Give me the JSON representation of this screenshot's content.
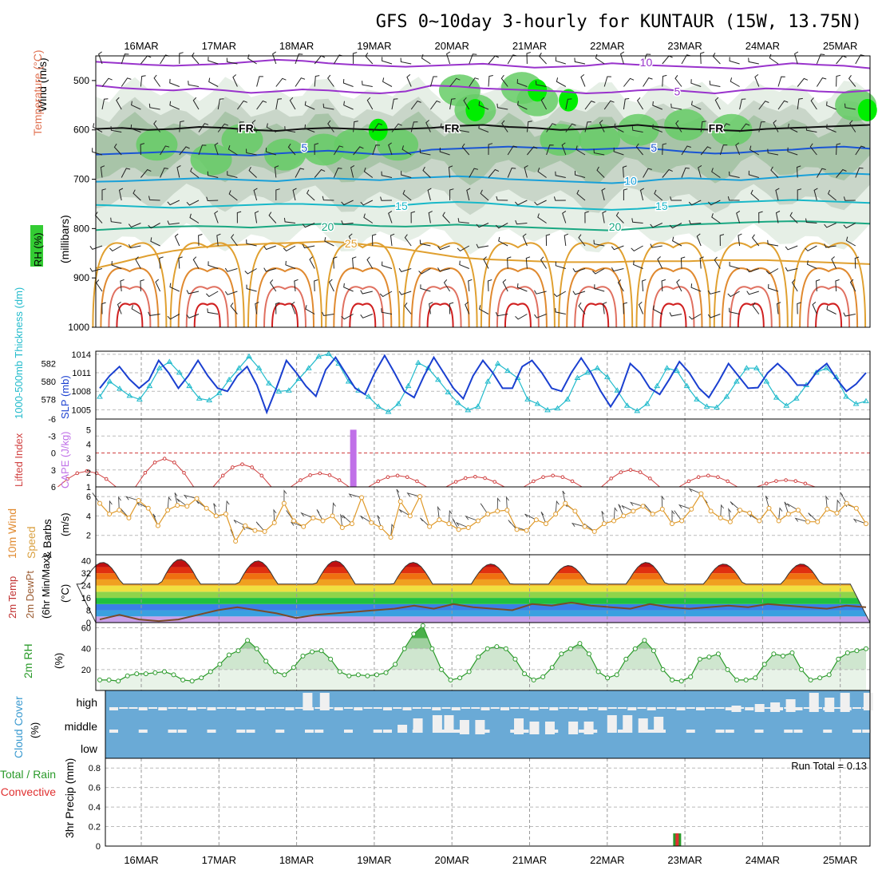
{
  "title": "GFS 0~10day 3-hourly for KUNTAUR (15W, 13.75N)",
  "dates": [
    "16MAR",
    "17MAR",
    "18MAR",
    "19MAR",
    "20MAR",
    "21MAR",
    "22MAR",
    "23MAR",
    "24MAR",
    "25MAR"
  ],
  "colors": {
    "rh_green": "#33cc33",
    "temp_purple": "#9933cc",
    "temp_blue": "#1a55d4",
    "temp_cyan": "#19b8c8",
    "temp_teal": "#1aa882",
    "temp_orange": "#e0a030",
    "temp_red": "#d02020",
    "cloud_blue": "#6aaad6",
    "thick_cyan": "#22bbcc",
    "slp_blue": "#1a3fd0",
    "cape_purple": "#c070e8",
    "li_red": "#d04040",
    "wind_orange": "#e09a2a",
    "rh2m_green": "#2a9a2a"
  },
  "chart_data": [
    {
      "panel": "upper-air",
      "type": "heatmap",
      "ylabel_left": [
        "RH (%)",
        "Temperature (°C)",
        "Wind (m/s)"
      ],
      "ylabel_axis": "(millibars)",
      "y_ticks": [
        "500",
        "600",
        "700",
        "800",
        "900",
        "1000"
      ],
      "ylim": [
        1000,
        450
      ],
      "isotherms": [
        {
          "value": "10",
          "label_positions_day": [
            7.2
          ]
        },
        {
          "value": "5",
          "label_positions_day": [
            7.4
          ]
        },
        {
          "value": "FR",
          "label_positions_day": [
            1.35,
            4.0,
            7.7
          ]
        },
        {
          "value": "5",
          "label_positions_day": [
            2.3,
            6.6
          ]
        },
        {
          "value": "10",
          "label_positions_day": [
            6.3
          ]
        },
        {
          "value": "15",
          "label_positions_day": [
            3.4,
            7.9
          ]
        },
        {
          "value": "20",
          "label_positions_day": [
            2.8,
            6.7
          ]
        },
        {
          "value": "25",
          "label_positions_day": [
            3.0
          ]
        }
      ],
      "isotherm_levels_mb": [
        {
          "value": 10,
          "color": "#9933cc",
          "mb": [
            462,
            465,
            468,
            470,
            468,
            466,
            462,
            458,
            460,
            465,
            468,
            470,
            472,
            470,
            468,
            466,
            470,
            474,
            472,
            470,
            465,
            468,
            470,
            472,
            474,
            476,
            470,
            465,
            468,
            470,
            475
          ]
        },
        {
          "value": 5,
          "color": "#9933cc",
          "mb": [
            510,
            515,
            518,
            520,
            516,
            520,
            525,
            522,
            518,
            520,
            524,
            526,
            522,
            510,
            512,
            516,
            518,
            520,
            522,
            526,
            524,
            520,
            518,
            522,
            526,
            520,
            516,
            518,
            522,
            524,
            520
          ]
        },
        {
          "value": 0,
          "color": "#111111",
          "mb": [
            598,
            596,
            600,
            598,
            594,
            596,
            600,
            602,
            598,
            596,
            598,
            600,
            598,
            596,
            592,
            590,
            594,
            596,
            600,
            598,
            594,
            590,
            595,
            598,
            600,
            602,
            598,
            596,
            594,
            592,
            590
          ]
        },
        {
          "value": -5,
          "color": "#1a55d4",
          "mb": [
            650,
            648,
            646,
            644,
            648,
            650,
            652,
            648,
            645,
            642,
            646,
            650,
            648,
            640,
            638,
            636,
            634,
            636,
            638,
            640,
            638,
            636,
            640,
            645,
            648,
            646,
            642,
            640,
            636,
            634,
            638
          ]
        },
        {
          "value": -10,
          "color": "#19a0d8",
          "mb": [
            705,
            704,
            702,
            700,
            698,
            700,
            702,
            704,
            700,
            698,
            700,
            702,
            698,
            696,
            694,
            696,
            700,
            702,
            704,
            706,
            708,
            705,
            700,
            698,
            700,
            702,
            698,
            694,
            690,
            688,
            690
          ]
        },
        {
          "value": -15,
          "color": "#19b8c8",
          "mb": [
            752,
            754,
            756,
            758,
            756,
            754,
            752,
            750,
            750,
            752,
            754,
            756,
            752,
            748,
            746,
            748,
            752,
            756,
            758,
            760,
            762,
            760,
            756,
            752,
            748,
            746,
            744,
            742,
            744,
            746,
            748
          ]
        },
        {
          "value": -20,
          "color": "#1aa882",
          "mb": [
            803,
            800,
            798,
            796,
            795,
            796,
            798,
            795,
            792,
            790,
            792,
            795,
            796,
            794,
            792,
            794,
            796,
            798,
            800,
            802,
            804,
            800,
            796,
            792,
            790,
            788,
            786,
            785,
            786,
            788,
            790
          ]
        },
        {
          "value": -25,
          "color": "#e0a030",
          "mb": [
            880,
            868,
            855,
            845,
            838,
            834,
            832,
            830,
            828,
            826,
            830,
            836,
            842,
            850,
            858,
            862,
            864,
            866,
            868,
            868,
            868,
            866,
            866,
            866,
            864,
            864,
            864,
            866,
            868,
            870,
            872
          ]
        }
      ],
      "moist_bands_mb": [
        [
          590,
          620
        ],
        [
          600,
          630
        ],
        [
          560,
          650
        ],
        [
          560,
          680
        ]
      ]
    },
    {
      "panel": "thickness-slp",
      "type": "line",
      "ylabel_left": "1000-500mb Thickness (dm)",
      "ylabel_right": "SLP (mb)",
      "left_ticks": [
        "582",
        "580",
        "578"
      ],
      "right_ticks": [
        "1014",
        "1011",
        "1008",
        "1005"
      ],
      "series": [
        {
          "name": "SLP (mb)",
          "values": [
            1008.5,
            1010.5,
            1012,
            1010,
            1008.5,
            1009.8,
            1013,
            1011,
            1008.5,
            1010.5,
            1013,
            1010.5,
            1008.5,
            1008,
            1010.5,
            1012,
            1009,
            1004.6,
            1008.6,
            1013,
            1011,
            1008.8,
            1007.2,
            1011.5,
            1013.5,
            1011,
            1008.5,
            1007.5,
            1011,
            1013.8,
            1011,
            1008,
            1007,
            1010.5,
            1013.5,
            1011,
            1008.5,
            1006.8,
            1010.5,
            1013,
            1011,
            1008.5,
            1008.5,
            1012,
            1013,
            1011,
            1008.5,
            1008,
            1011,
            1013.4,
            1011,
            1008,
            1005.5,
            1008,
            1012.5,
            1011,
            1008.5,
            1007.5,
            1010,
            1012.8,
            1011,
            1008.5,
            1007,
            1009.6,
            1012.5,
            1010.5,
            1008.5,
            1008.6,
            1011,
            1012.5,
            1011,
            1009,
            1009,
            1011.2,
            1012.5,
            1010,
            1008,
            1009.2,
            1011
          ]
        },
        {
          "name": "Thickness (dm)",
          "values": [
            578.3,
            580.0,
            579.2,
            578.4,
            578.0,
            579.5,
            581.5,
            582.2,
            581.0,
            579.5,
            578.1,
            577.9,
            578.7,
            580.2,
            581.5,
            582.8,
            581.5,
            579.8,
            578.9,
            579.0,
            580.3,
            581.5,
            582.8,
            583.1,
            582.0,
            580.0,
            579.0,
            578.3,
            577.2,
            576.6,
            577.5,
            579.5,
            582.1,
            581.5,
            580.2,
            578.8,
            577.6,
            576.8,
            577.2,
            580.0,
            582.0,
            581.2,
            580.4,
            578.0,
            577.5,
            576.8,
            577.0,
            578.0,
            580.4,
            581.0,
            581.5,
            580.5,
            579.0,
            577.3,
            576.7,
            577.5,
            579.5,
            581.5,
            581.2,
            579.5,
            578.0,
            577.2,
            577.1,
            578.3,
            580.0,
            581.5,
            581.5,
            580.0,
            578.2,
            577.3,
            578.1,
            579.6,
            581.0,
            581.5,
            580.5,
            578.3,
            577.5,
            577.8
          ]
        }
      ]
    },
    {
      "panel": "cape-li",
      "type": "line",
      "ylabel_left": "Lifted Index",
      "ylabel_right": "CAPE (J/kg)",
      "left_ticks": [
        "-6",
        "-3",
        "0",
        "3",
        "6"
      ],
      "right_ticks": [
        "5",
        "4",
        "3",
        "2",
        "1"
      ],
      "cape_bar_day": 2.73,
      "cape_bar_value": 5,
      "series": [
        {
          "name": "Lifted Index",
          "peaks": [
            {
              "day": 0.25,
              "li": 3.2
            },
            {
              "day": 1.25,
              "li": 1.0
            },
            {
              "day": 2.25,
              "li": 2.0
            },
            {
              "day": 3.25,
              "li": 3.6
            },
            {
              "day": 4.25,
              "li": 4.0
            },
            {
              "day": 5.25,
              "li": 4.2
            },
            {
              "day": 6.25,
              "li": 4.0
            },
            {
              "day": 7.25,
              "li": 3.0
            },
            {
              "day": 8.25,
              "li": 4.0
            },
            {
              "day": 9.25,
              "li": 4.8
            }
          ]
        }
      ]
    },
    {
      "panel": "wind10m",
      "type": "line",
      "ylabel_left": [
        "10m Wind",
        "Speed",
        "& Barbs"
      ],
      "unit": "(m/s)",
      "y_ticks": [
        "6",
        "4",
        "2"
      ],
      "ylim": [
        0,
        7
      ],
      "series": [
        {
          "name": "10m wind speed",
          "values": [
            5.3,
            4.2,
            4.6,
            3.8,
            5.6,
            4.8,
            3.0,
            4.6,
            5.1,
            5.0,
            5.8,
            4.8,
            4.0,
            4.2,
            1.4,
            3.0,
            2.5,
            2.4,
            3.3,
            5.3,
            3.5,
            2.9,
            3.8,
            3.5,
            4.0,
            2.8,
            3.2,
            5.9,
            3.3,
            2.8,
            1.8,
            5.5,
            4.0,
            6.0,
            2.9,
            3.6,
            3.2,
            2.6,
            2.8,
            3.5,
            4.2,
            4.5,
            4.6,
            2.6,
            2.5,
            3.6,
            3.2,
            4.2,
            5.3,
            4.5,
            2.9,
            2.4,
            3.2,
            3.5,
            4.0,
            4.5,
            5.0,
            4.2,
            4.7,
            3.2,
            3.5,
            4.7,
            6.3,
            4.5,
            3.8,
            3.4,
            4.6,
            4.3,
            3.5,
            4.8,
            3.5,
            4.2,
            4.6,
            3.4,
            3.4,
            4.7,
            4.3,
            5.3,
            4.8,
            3.2
          ]
        }
      ]
    },
    {
      "panel": "temp2m",
      "type": "area",
      "ylabel_left": [
        "2m Temp",
        "2m DewPt",
        "(6hr Min/Max)"
      ],
      "unit": "(°C)",
      "y_ticks": [
        "40",
        "32",
        "24",
        "16",
        "8",
        "0"
      ],
      "ylim": [
        0,
        44
      ],
      "series": [
        {
          "name": "2m Temp",
          "amplitude_peaks": [
            39,
            41,
            40,
            40,
            39,
            38,
            37,
            39,
            38,
            38
          ],
          "trough": 25
        },
        {
          "name": "2m DewPt",
          "values": [
            2,
            5,
            2,
            1,
            2,
            5,
            8,
            10,
            8,
            6,
            3,
            5,
            6,
            7,
            8,
            9,
            11,
            9,
            12,
            10,
            9,
            8,
            12,
            11,
            13,
            11,
            10,
            9,
            12,
            10,
            9,
            10,
            11,
            10,
            12,
            11,
            10,
            9,
            11,
            10
          ]
        }
      ]
    },
    {
      "panel": "rh2m",
      "type": "area",
      "ylabel_left": "2m RH",
      "unit": "(%)",
      "y_ticks": [
        "60",
        "40",
        "20"
      ],
      "ylim": [
        0,
        65
      ],
      "series": [
        {
          "name": "2m RH",
          "values": [
            10,
            10,
            9,
            14,
            16,
            16,
            17,
            18,
            15,
            10,
            9,
            12,
            18,
            25,
            34,
            38,
            48,
            40,
            28,
            18,
            15,
            22,
            33,
            37,
            38,
            30,
            18,
            14,
            15,
            14,
            15,
            17,
            25,
            40,
            54,
            62,
            40,
            20,
            10,
            12,
            18,
            32,
            40,
            42,
            40,
            30,
            16,
            10,
            13,
            22,
            35,
            40,
            45,
            35,
            18,
            12,
            15,
            30,
            40,
            48,
            38,
            20,
            10,
            9,
            13,
            30,
            32,
            35,
            20,
            10,
            10,
            12,
            25,
            35,
            33,
            36,
            20,
            10,
            12,
            15,
            30,
            36,
            38,
            40
          ]
        }
      ]
    },
    {
      "panel": "cloud",
      "type": "bar",
      "ylabel_left": [
        "Cloud Cover",
        "(%)"
      ],
      "layer_labels": [
        "high",
        "middle",
        "low"
      ]
    },
    {
      "panel": "precip",
      "type": "bar",
      "ylabel_left": [
        "3hr Precip (mm)"
      ],
      "ylabel_left2": [
        "Total / Rain",
        "Convective"
      ],
      "y_ticks": [
        "0.8",
        "0.6",
        "0.4",
        "0.2",
        "0"
      ],
      "ylim": [
        0,
        0.9
      ],
      "run_total": "Run Total = 0.13",
      "bars": [
        {
          "day": 6.9,
          "total": 0.13,
          "rain": 0.13,
          "convective": 0.13
        }
      ]
    }
  ]
}
